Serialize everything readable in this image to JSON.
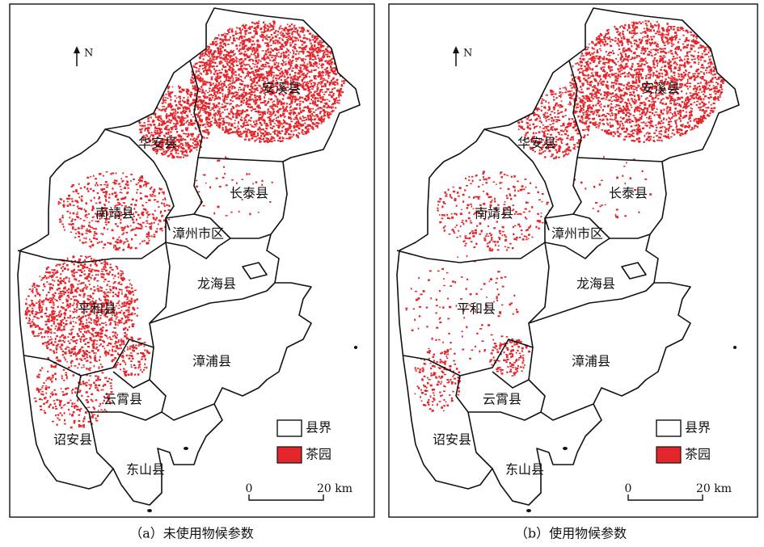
{
  "panels": [
    {
      "north": "N",
      "counties": [
        "安溪县",
        "华安县",
        "长泰县",
        "南靖县",
        "漳州市区",
        "龙海县",
        "平和县",
        "漳浦县",
        "云霄县",
        "诏安县",
        "东山县"
      ],
      "legend": [
        "县界",
        "茶园"
      ],
      "scale": {
        "start": "0",
        "end": "20 km"
      },
      "caption": "（a）未使用物候参数"
    },
    {
      "north": "N",
      "counties": [
        "安溪县",
        "华安县",
        "长泰县",
        "南靖县",
        "漳州市区",
        "龙海县",
        "平和县",
        "漳浦县",
        "云霄县",
        "诏安县",
        "东山县"
      ],
      "legend": [
        "县界",
        "茶园"
      ],
      "scale": {
        "start": "0",
        "end": "20 km"
      },
      "caption": "（b）使用物候参数"
    }
  ]
}
